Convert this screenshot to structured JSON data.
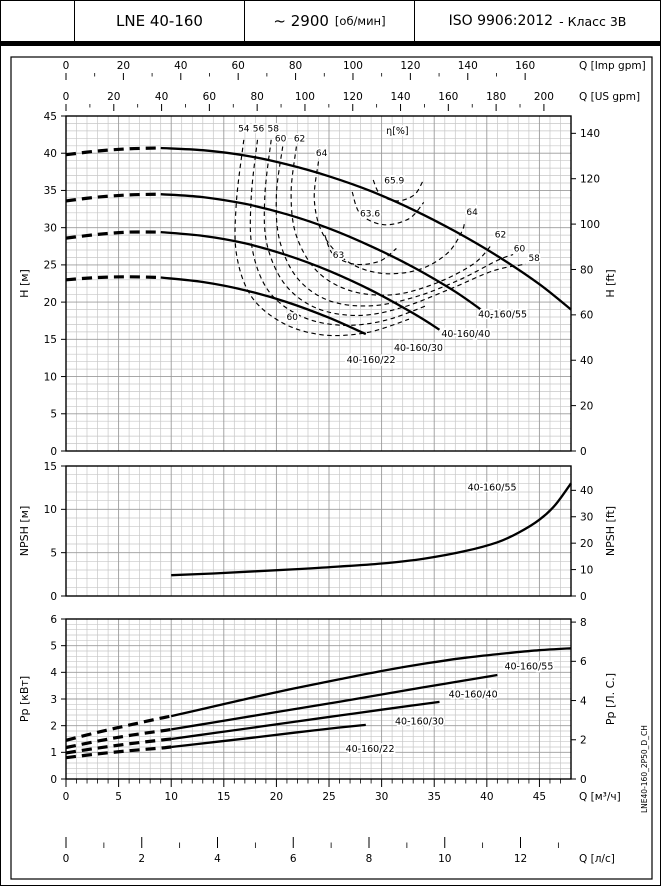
{
  "header": {
    "model": "LNE 40-160",
    "speed_value": "~ 2900",
    "speed_unit": "[об/мин]",
    "standard_value": "ISO 9906:2012",
    "standard_suffix": "- Класс 3В"
  },
  "side_label": "LNE40-160_2P50_D_CH",
  "axes": {
    "imp_gpm": {
      "label": "Q [Imp gpm]",
      "ticks": [
        0,
        20,
        40,
        60,
        80,
        100,
        120,
        140,
        160
      ]
    },
    "us_gpm": {
      "label": "Q [US gpm]",
      "ticks": [
        0,
        20,
        40,
        60,
        80,
        100,
        120,
        140,
        160,
        180,
        200
      ]
    },
    "m3h": {
      "label": "Q [м³/ч]",
      "ticks": [
        0,
        5,
        10,
        15,
        20,
        25,
        30,
        35,
        40,
        45
      ]
    },
    "ls": {
      "label": "Q [л/с]",
      "ticks": [
        0,
        2,
        4,
        6,
        8,
        10,
        12
      ]
    }
  },
  "chart_data": [
    {
      "id": "head",
      "type": "line",
      "title": "Pump head curves",
      "xlabel": "Q [м³/ч]",
      "ylabel_left": "H [м]",
      "ylabel_right": "H [ft]",
      "xlim": [
        0,
        48
      ],
      "ylim": [
        0,
        45
      ],
      "grid": true,
      "yticks_left": [
        0,
        5,
        10,
        15,
        20,
        25,
        30,
        35,
        40,
        45
      ],
      "yticks_right_ft": [
        0,
        20,
        40,
        60,
        80,
        100,
        120,
        140
      ],
      "eta_label": "η[%]",
      "eta_label_pos": [
        31.5,
        42.6
      ],
      "series": [
        {
          "name": "40-160/55",
          "dashed_until": 9,
          "label_pos": [
            41.5,
            17.9
          ],
          "points": [
            [
              0,
              39.8
            ],
            [
              3,
              40.3
            ],
            [
              6,
              40.6
            ],
            [
              9,
              40.7
            ],
            [
              13,
              40.4
            ],
            [
              17,
              39.7
            ],
            [
              21,
              38.5
            ],
            [
              25,
              36.9
            ],
            [
              29,
              34.9
            ],
            [
              33,
              32.4
            ],
            [
              37,
              29.5
            ],
            [
              41,
              26.2
            ],
            [
              45,
              22.4
            ],
            [
              48,
              19.0
            ]
          ]
        },
        {
          "name": "40-160/40",
          "dashed_until": 9,
          "label_pos": [
            38.0,
            15.3
          ],
          "points": [
            [
              0,
              33.6
            ],
            [
              3,
              34.1
            ],
            [
              6,
              34.4
            ],
            [
              9,
              34.5
            ],
            [
              13,
              34.1
            ],
            [
              17,
              33.2
            ],
            [
              21,
              31.8
            ],
            [
              25,
              29.9
            ],
            [
              29,
              27.5
            ],
            [
              33,
              24.7
            ],
            [
              37,
              21.4
            ],
            [
              40.5,
              17.9
            ]
          ]
        },
        {
          "name": "40-160/30",
          "dashed_until": 9,
          "label_pos": [
            33.5,
            13.4
          ],
          "points": [
            [
              0,
              28.6
            ],
            [
              3,
              29.1
            ],
            [
              6,
              29.4
            ],
            [
              9,
              29.4
            ],
            [
              13,
              28.9
            ],
            [
              17,
              27.9
            ],
            [
              21,
              26.3
            ],
            [
              25,
              24.2
            ],
            [
              29,
              21.6
            ],
            [
              33,
              18.5
            ],
            [
              35.5,
              16.3
            ]
          ]
        },
        {
          "name": "40-160/22",
          "dashed_until": 9,
          "label_pos": [
            29.0,
            11.8
          ],
          "points": [
            [
              0,
              23.0
            ],
            [
              3,
              23.3
            ],
            [
              6,
              23.4
            ],
            [
              9,
              23.3
            ],
            [
              13,
              22.7
            ],
            [
              17,
              21.6
            ],
            [
              21,
              20.0
            ],
            [
              25,
              17.9
            ],
            [
              28.5,
              15.7
            ]
          ]
        }
      ],
      "efficiency_contours": [
        {
          "points": [
            [
              16.9,
              41.8
            ],
            [
              16.2,
              33.5
            ],
            [
              16.2,
              26.5
            ],
            [
              17.6,
              20.8
            ],
            [
              20.6,
              17.2
            ],
            [
              24.4,
              15.6
            ],
            [
              28.6,
              15.9
            ],
            [
              32.6,
              17.7
            ]
          ]
        },
        {
          "points": [
            [
              18.2,
              41.8
            ],
            [
              17.6,
              34.0
            ],
            [
              17.7,
              27.2
            ],
            [
              19.2,
              21.6
            ],
            [
              22.2,
              18.2
            ],
            [
              26.0,
              16.9
            ],
            [
              30.2,
              17.5
            ],
            [
              34.4,
              19.6
            ]
          ]
        },
        {
          "points": [
            [
              19.5,
              41.8
            ],
            [
              18.9,
              34.2
            ],
            [
              19.1,
              27.8
            ],
            [
              20.8,
              22.4
            ],
            [
              23.8,
              19.2
            ],
            [
              27.8,
              18.2
            ],
            [
              32.0,
              19.3
            ],
            [
              36.4,
              21.7
            ],
            [
              40.6,
              24.2
            ],
            [
              43.7,
              25.1
            ]
          ]
        },
        {
          "points": [
            [
              20.6,
              40.9
            ],
            [
              20.0,
              34.4
            ],
            [
              20.3,
              28.3
            ],
            [
              22.0,
              23.2
            ],
            [
              25.0,
              20.2
            ],
            [
              29.0,
              19.5
            ],
            [
              33.2,
              20.7
            ],
            [
              37.4,
              23.0
            ],
            [
              41.0,
              25.6
            ],
            [
              42.5,
              26.4
            ]
          ]
        },
        {
          "points": [
            [
              21.9,
              40.9
            ],
            [
              21.4,
              34.6
            ],
            [
              21.9,
              28.9
            ],
            [
              23.9,
              24.1
            ],
            [
              27.1,
              21.5
            ],
            [
              31.1,
              21.0
            ],
            [
              35.1,
              22.5
            ],
            [
              38.7,
              25.1
            ],
            [
              40.4,
              27.6
            ]
          ]
        },
        {
          "points": [
            [
              24.0,
              38.9
            ],
            [
              23.6,
              33.8
            ],
            [
              24.4,
              29.2
            ],
            [
              26.6,
              25.6
            ],
            [
              29.8,
              23.9
            ],
            [
              33.4,
              24.3
            ],
            [
              36.2,
              26.5
            ],
            [
              37.6,
              29.4
            ],
            [
              37.9,
              30.9
            ]
          ]
        },
        {
          "points": [
            [
              27.2,
              34.8
            ],
            [
              28.0,
              31.8
            ],
            [
              30.2,
              30.4
            ],
            [
              32.6,
              31.2
            ],
            [
              34.0,
              33.4
            ]
          ]
        },
        {
          "points": [
            [
              24.6,
              29.0
            ],
            [
              25.4,
              26.4
            ],
            [
              27.4,
              25.1
            ],
            [
              29.8,
              25.5
            ],
            [
              31.4,
              27.2
            ]
          ]
        },
        {
          "points": [
            [
              29.2,
              36.4
            ],
            [
              29.9,
              34.4
            ],
            [
              31.5,
              33.6
            ],
            [
              33.1,
              34.4
            ],
            [
              33.9,
              36.2
            ]
          ]
        }
      ],
      "efficiency_labels": [
        {
          "text": "54",
          "pos": [
            16.9,
            42.9
          ]
        },
        {
          "text": "56",
          "pos": [
            18.3,
            42.9
          ]
        },
        {
          "text": "58",
          "pos": [
            19.7,
            42.9
          ]
        },
        {
          "text": "60",
          "pos": [
            20.4,
            41.6
          ]
        },
        {
          "text": "62",
          "pos": [
            22.2,
            41.6
          ]
        },
        {
          "text": "64",
          "pos": [
            24.3,
            39.6
          ]
        },
        {
          "text": "65.9",
          "pos": [
            31.2,
            35.9
          ]
        },
        {
          "text": "63.6",
          "pos": [
            28.9,
            31.5
          ]
        },
        {
          "text": "63",
          "pos": [
            25.9,
            25.9
          ]
        },
        {
          "text": "60",
          "pos": [
            21.5,
            17.6
          ]
        },
        {
          "text": "64",
          "pos": [
            38.6,
            31.7
          ]
        },
        {
          "text": "62",
          "pos": [
            41.3,
            28.7
          ]
        },
        {
          "text": "60",
          "pos": [
            43.1,
            26.8
          ]
        },
        {
          "text": "58",
          "pos": [
            44.5,
            25.5
          ]
        }
      ]
    },
    {
      "id": "npsh",
      "type": "line",
      "title": "NPSH curve",
      "xlabel": "Q [м³/ч]",
      "ylabel_left": "NPSH [м]",
      "ylabel_right": "NPSH [ft]",
      "xlim": [
        0,
        48
      ],
      "ylim": [
        0,
        15
      ],
      "grid": true,
      "yticks_left": [
        0,
        5,
        10,
        15
      ],
      "yticks_right_ft": [
        0,
        10,
        20,
        30,
        40
      ],
      "series": [
        {
          "name": "40-160/55",
          "label_pos": [
            40.5,
            12.2
          ],
          "points": [
            [
              10,
              2.4
            ],
            [
              14,
              2.6
            ],
            [
              18,
              2.85
            ],
            [
              22,
              3.1
            ],
            [
              26,
              3.4
            ],
            [
              30,
              3.75
            ],
            [
              34,
              4.3
            ],
            [
              38,
              5.2
            ],
            [
              41,
              6.2
            ],
            [
              43,
              7.3
            ],
            [
              45,
              8.8
            ],
            [
              46.5,
              10.5
            ],
            [
              48,
              13.0
            ]
          ]
        }
      ]
    },
    {
      "id": "power",
      "type": "line",
      "title": "Power curves",
      "xlabel": "Q [м³/ч]",
      "ylabel_left": "Pp [кВт]",
      "ylabel_right": "Pp [Л. С.]",
      "xlim": [
        0,
        48
      ],
      "ylim": [
        0,
        6
      ],
      "grid": true,
      "yticks_left": [
        0,
        1,
        2,
        3,
        4,
        5,
        6
      ],
      "yticks_right_hp": [
        0,
        2,
        4,
        6,
        8
      ],
      "series": [
        {
          "name": "40-160/55",
          "dashed_until": 10,
          "label_pos": [
            44.0,
            4.1
          ],
          "points": [
            [
              0,
              1.45
            ],
            [
              3,
              1.75
            ],
            [
              6,
              2.02
            ],
            [
              9,
              2.28
            ],
            [
              10,
              2.36
            ],
            [
              14,
              2.72
            ],
            [
              18,
              3.08
            ],
            [
              22,
              3.42
            ],
            [
              26,
              3.74
            ],
            [
              30,
              4.05
            ],
            [
              34,
              4.32
            ],
            [
              38,
              4.55
            ],
            [
              42,
              4.72
            ],
            [
              45,
              4.83
            ],
            [
              48,
              4.9
            ]
          ]
        },
        {
          "name": "40-160/40",
          "dashed_until": 10,
          "label_pos": [
            38.7,
            3.05
          ],
          "points": [
            [
              0,
              1.18
            ],
            [
              3,
              1.42
            ],
            [
              6,
              1.63
            ],
            [
              9,
              1.8
            ],
            [
              10,
              1.86
            ],
            [
              14,
              2.12
            ],
            [
              18,
              2.38
            ],
            [
              22,
              2.64
            ],
            [
              26,
              2.9
            ],
            [
              30,
              3.17
            ],
            [
              34,
              3.44
            ],
            [
              38,
              3.7
            ],
            [
              41,
              3.9
            ]
          ]
        },
        {
          "name": "40-160/30",
          "dashed_until": 10,
          "label_pos": [
            33.6,
            2.05
          ],
          "points": [
            [
              0,
              0.98
            ],
            [
              3,
              1.16
            ],
            [
              6,
              1.32
            ],
            [
              9,
              1.46
            ],
            [
              10,
              1.5
            ],
            [
              14,
              1.72
            ],
            [
              18,
              1.94
            ],
            [
              22,
              2.16
            ],
            [
              26,
              2.38
            ],
            [
              30,
              2.6
            ],
            [
              33,
              2.76
            ],
            [
              35.5,
              2.89
            ]
          ]
        },
        {
          "name": "40-160/22",
          "dashed_until": 10,
          "label_pos": [
            28.9,
            1.02
          ],
          "points": [
            [
              0,
              0.8
            ],
            [
              3,
              0.94
            ],
            [
              6,
              1.06
            ],
            [
              9,
              1.16
            ],
            [
              10,
              1.2
            ],
            [
              14,
              1.38
            ],
            [
              18,
              1.56
            ],
            [
              22,
              1.75
            ],
            [
              26,
              1.93
            ],
            [
              28.5,
              2.03
            ]
          ]
        }
      ]
    }
  ]
}
